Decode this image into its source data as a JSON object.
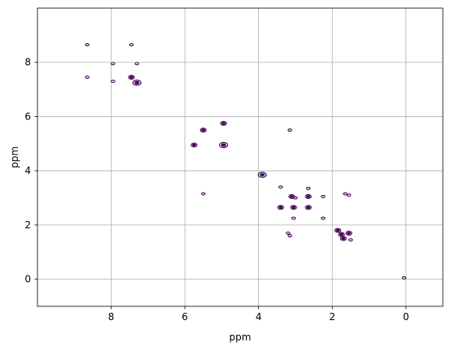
{
  "chart_data": {
    "type": "contour",
    "xlabel": "ppm",
    "ylabel": "ppm",
    "xlim": [
      10,
      -1
    ],
    "ylim": [
      10,
      -1
    ],
    "x_inverted": true,
    "y_inverted": true,
    "grid": true,
    "x_ticks": [
      8,
      6,
      4,
      2,
      0
    ],
    "y_ticks": [
      0,
      2,
      4,
      6,
      8
    ],
    "x_tick_labels": [
      "8",
      "6",
      "4",
      "2",
      "0"
    ],
    "y_tick_labels": [
      "0",
      "2",
      "4",
      "6",
      "8"
    ],
    "colors": {
      "contour": "#440154",
      "contour_highlight": "#21918c",
      "grid": "#b0b0b0"
    },
    "peaks": [
      {
        "x": 0.05,
        "y": 0.05,
        "size": "small"
      },
      {
        "x": 1.7,
        "y": 1.5,
        "size": "medium"
      },
      {
        "x": 1.75,
        "y": 1.65,
        "size": "medium"
      },
      {
        "x": 1.55,
        "y": 1.7,
        "size": "medium"
      },
      {
        "x": 1.85,
        "y": 1.8,
        "size": "medium"
      },
      {
        "x": 1.5,
        "y": 1.45,
        "size": "small"
      },
      {
        "x": 3.15,
        "y": 1.6,
        "size": "small"
      },
      {
        "x": 3.2,
        "y": 1.7,
        "size": "small"
      },
      {
        "x": 3.05,
        "y": 2.25,
        "size": "small"
      },
      {
        "x": 2.25,
        "y": 2.25,
        "size": "small"
      },
      {
        "x": 3.4,
        "y": 2.65,
        "size": "medium"
      },
      {
        "x": 3.05,
        "y": 2.65,
        "size": "medium"
      },
      {
        "x": 2.65,
        "y": 2.65,
        "size": "medium"
      },
      {
        "x": 3.1,
        "y": 3.05,
        "size": "medium"
      },
      {
        "x": 3.0,
        "y": 3.0,
        "size": "small"
      },
      {
        "x": 2.65,
        "y": 3.05,
        "size": "medium"
      },
      {
        "x": 2.25,
        "y": 3.05,
        "size": "small"
      },
      {
        "x": 1.65,
        "y": 3.15,
        "size": "small"
      },
      {
        "x": 1.55,
        "y": 3.1,
        "size": "small"
      },
      {
        "x": 3.4,
        "y": 3.4,
        "size": "small"
      },
      {
        "x": 2.65,
        "y": 3.35,
        "size": "small"
      },
      {
        "x": 5.5,
        "y": 3.15,
        "size": "small"
      },
      {
        "x": 3.9,
        "y": 3.85,
        "size": "large",
        "highlight": true
      },
      {
        "x": 5.75,
        "y": 4.95,
        "size": "medium"
      },
      {
        "x": 4.95,
        "y": 4.95,
        "size": "large"
      },
      {
        "x": 5.5,
        "y": 5.5,
        "size": "medium"
      },
      {
        "x": 3.15,
        "y": 5.5,
        "size": "small"
      },
      {
        "x": 4.95,
        "y": 5.75,
        "size": "medium"
      },
      {
        "x": 8.65,
        "y": 7.45,
        "size": "small"
      },
      {
        "x": 7.95,
        "y": 7.3,
        "size": "small"
      },
      {
        "x": 7.3,
        "y": 7.25,
        "size": "large"
      },
      {
        "x": 7.45,
        "y": 7.45,
        "size": "medium"
      },
      {
        "x": 7.95,
        "y": 7.95,
        "size": "small"
      },
      {
        "x": 7.3,
        "y": 7.95,
        "size": "small"
      },
      {
        "x": 8.65,
        "y": 8.65,
        "size": "small"
      },
      {
        "x": 7.45,
        "y": 8.65,
        "size": "small"
      }
    ]
  }
}
